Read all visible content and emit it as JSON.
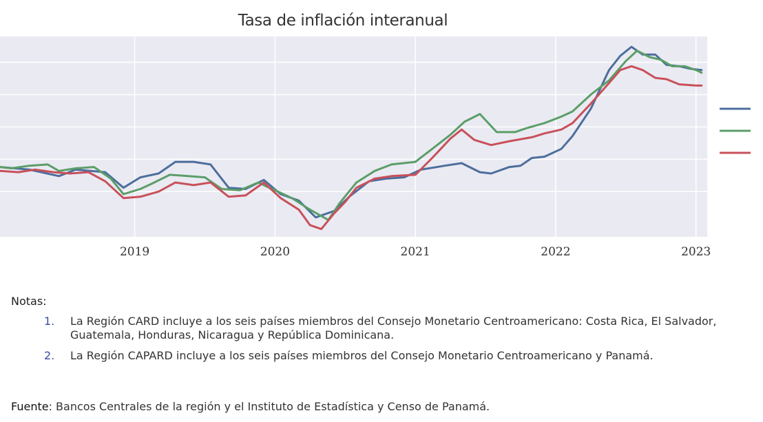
{
  "chart_data": {
    "type": "line",
    "title": "Tasa de inflación interanual",
    "xlabel": "",
    "ylabel": "",
    "xlim": [
      2018.04,
      2023.08
    ],
    "x_ticks": [
      "2019",
      "2020",
      "2021",
      "2022",
      "2023"
    ],
    "grid": true,
    "legend_position": "right (cropped)",
    "colors": {
      "blue": "#4c6e9c",
      "green": "#5a9e68",
      "red": "#c8505a",
      "plot_bg": "#eaeaf2"
    },
    "series": [
      {
        "color": "#4c6e9c",
        "x": [
          2018.04,
          2018.25,
          2018.46,
          2018.58,
          2018.79,
          2018.92,
          2019.04,
          2019.17,
          2019.29,
          2019.42,
          2019.54,
          2019.67,
          2019.79,
          2019.92,
          2020.04,
          2020.17,
          2020.29,
          2020.42,
          2020.54,
          2020.67,
          2020.79,
          2020.92,
          2021.04,
          2021.21,
          2021.33,
          2021.46,
          2021.54,
          2021.67,
          2021.75,
          2021.83,
          2021.92,
          2022.04,
          2022.12,
          2022.25,
          2022.38,
          2022.46,
          2022.54,
          2022.62,
          2022.71,
          2022.79,
          2022.88,
          2022.96,
          2023.04
        ],
        "y": [
          1.9,
          1.7,
          1.2,
          1.7,
          1.5,
          0.3,
          1.1,
          1.4,
          2.3,
          2.3,
          2.1,
          0.3,
          0.2,
          0.9,
          -0.2,
          -0.7,
          -2.0,
          -1.5,
          -0.3,
          0.8,
          1.0,
          1.1,
          1.7,
          2.0,
          2.2,
          1.5,
          1.4,
          1.9,
          2.0,
          2.6,
          2.7,
          3.3,
          4.3,
          6.4,
          9.4,
          10.5,
          11.2,
          10.6,
          10.6,
          9.8,
          9.7,
          9.5,
          9.4
        ]
      },
      {
        "color": "#5a9e68",
        "x": [
          2018.04,
          2018.12,
          2018.25,
          2018.38,
          2018.46,
          2018.58,
          2018.71,
          2018.83,
          2018.92,
          2019.04,
          2019.12,
          2019.25,
          2019.38,
          2019.5,
          2019.62,
          2019.75,
          2019.88,
          2020.0,
          2020.12,
          2020.25,
          2020.38,
          2020.46,
          2020.58,
          2020.71,
          2020.83,
          2021.0,
          2021.12,
          2021.25,
          2021.35,
          2021.46,
          2021.58,
          2021.71,
          2021.79,
          2021.92,
          2022.04,
          2022.12,
          2022.25,
          2022.38,
          2022.5,
          2022.58,
          2022.67,
          2022.75,
          2022.83,
          2022.92,
          2023.0,
          2023.04
        ],
        "y": [
          1.9,
          1.8,
          2.0,
          2.1,
          1.6,
          1.8,
          1.9,
          1.0,
          -0.2,
          0.2,
          0.6,
          1.3,
          1.2,
          1.1,
          0.2,
          0.1,
          0.7,
          0.1,
          -0.5,
          -1.4,
          -2.2,
          -0.9,
          0.7,
          1.6,
          2.1,
          2.3,
          3.3,
          4.4,
          5.4,
          6.0,
          4.6,
          4.6,
          4.9,
          5.3,
          5.8,
          6.2,
          7.5,
          8.6,
          10.1,
          10.9,
          10.4,
          10.2,
          9.7,
          9.7,
          9.4,
          9.2
        ]
      },
      {
        "color": "#c8505a",
        "x": [
          2018.04,
          2018.17,
          2018.29,
          2018.42,
          2018.54,
          2018.67,
          2018.79,
          2018.92,
          2019.04,
          2019.17,
          2019.29,
          2019.42,
          2019.54,
          2019.67,
          2019.79,
          2019.92,
          2020.04,
          2020.17,
          2020.25,
          2020.33,
          2020.42,
          2020.5,
          2020.58,
          2020.71,
          2020.83,
          2021.0,
          2021.12,
          2021.25,
          2021.33,
          2021.42,
          2021.54,
          2021.67,
          2021.83,
          2021.92,
          2022.04,
          2022.12,
          2022.25,
          2022.38,
          2022.46,
          2022.54,
          2022.62,
          2022.71,
          2022.79,
          2022.88,
          2023.0,
          2023.04
        ],
        "y": [
          1.6,
          1.5,
          1.7,
          1.5,
          1.4,
          1.5,
          0.8,
          -0.5,
          -0.4,
          0.0,
          0.7,
          0.5,
          0.7,
          -0.4,
          -0.3,
          0.7,
          -0.5,
          -1.4,
          -2.6,
          -2.9,
          -1.7,
          -0.8,
          0.3,
          1.0,
          1.2,
          1.3,
          2.6,
          4.1,
          4.8,
          4.0,
          3.6,
          3.9,
          4.2,
          4.5,
          4.8,
          5.3,
          6.8,
          8.4,
          9.4,
          9.7,
          9.4,
          8.8,
          8.7,
          8.3,
          8.2,
          8.2
        ]
      }
    ]
  },
  "notes": {
    "label": "Notas:",
    "items": [
      {
        "num": "1.",
        "text": "La Región CARD incluye a los seis países miembros del Consejo Monetario Centroamericano: Costa Rica, El Salvador, Guatemala, Honduras, Nicaragua y República Dominicana."
      },
      {
        "num": "2.",
        "text": "La Región CAPARD incluye a los seis países miembros del Consejo Monetario Centroamericano y Panamá."
      }
    ]
  },
  "source": {
    "label": "Fuente",
    "text": ": Bancos Centrales de la región y el Instituto de Estadística y Censo de Panamá."
  }
}
